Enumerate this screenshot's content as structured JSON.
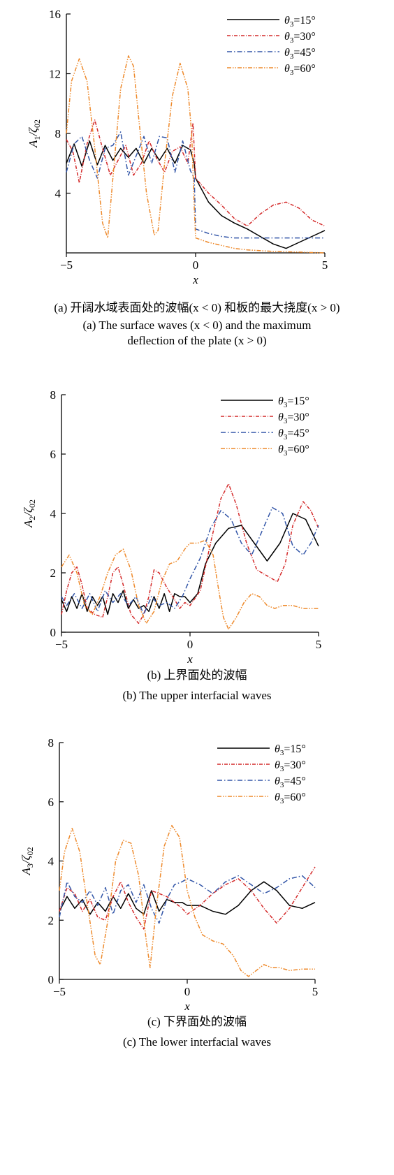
{
  "chart_data": [
    {
      "type": "line",
      "panel": "a",
      "xlabel": "x",
      "ylabel": "A1/ζ02",
      "xlim": [
        -5,
        5
      ],
      "ylim": [
        0,
        16
      ],
      "xticks": [
        "−5",
        "0",
        "5"
      ],
      "yticks": [
        "4",
        "8",
        "12",
        "16"
      ],
      "legend_position": "top-right",
      "caption_cn": "(a) 开阔水域表面处的波幅(x < 0) 和板的最大挠度(x > 0)",
      "caption_en": "(a) The surface waves (x < 0) and the maximum deflection of the plate (x > 0)",
      "series": [
        {
          "name": "θ3=15°",
          "color": "#000000",
          "dash": "",
          "x": [
            -5,
            -4.7,
            -4.4,
            -4.1,
            -3.8,
            -3.5,
            -3.2,
            -2.9,
            -2.6,
            -2.3,
            -2.0,
            -1.7,
            -1.4,
            -1.1,
            -0.8,
            -0.5,
            -0.2,
            -0.05,
            0.0,
            0.5,
            1.0,
            1.5,
            2.0,
            2.5,
            3.0,
            3.5,
            4.0,
            4.5,
            5.0
          ],
          "y": [
            6.0,
            7.3,
            5.8,
            7.5,
            5.9,
            7.2,
            6.2,
            7.0,
            6.4,
            7.0,
            6.0,
            7.0,
            6.2,
            7.0,
            6.0,
            7.2,
            6.9,
            6.0,
            5.0,
            3.4,
            2.5,
            2.0,
            1.6,
            1.1,
            0.6,
            0.3,
            0.7,
            1.1,
            1.5
          ]
        },
        {
          "name": "θ3=30°",
          "color": "#d42a2a",
          "dash": "5,2,1,2",
          "x": [
            -5,
            -4.75,
            -4.5,
            -4.2,
            -3.9,
            -3.6,
            -3.3,
            -3.0,
            -2.7,
            -2.4,
            -2.1,
            -1.8,
            -1.5,
            -1.2,
            -0.9,
            -0.6,
            -0.3,
            -0.1,
            0.0,
            0.5,
            1.0,
            1.5,
            2.0,
            2.5,
            3.0,
            3.5,
            4.0,
            4.5,
            5.0
          ],
          "y": [
            7.6,
            6.8,
            4.7,
            7.3,
            8.9,
            7.0,
            5.2,
            6.2,
            7.2,
            5.2,
            6.0,
            7.5,
            6.3,
            5.4,
            6.8,
            7.1,
            6.0,
            8.7,
            5.0,
            4.0,
            3.2,
            2.3,
            1.8,
            2.6,
            3.2,
            3.4,
            3.0,
            2.2,
            1.8
          ]
        },
        {
          "name": "θ3=45°",
          "color": "#3356a8",
          "dash": "7,3,1.5,3",
          "x": [
            -5,
            -4.7,
            -4.4,
            -4.1,
            -3.8,
            -3.5,
            -3.2,
            -2.9,
            -2.6,
            -2.3,
            -2.0,
            -1.7,
            -1.4,
            -1.1,
            -0.8,
            -0.5,
            -0.2,
            -0.05,
            0.0,
            0.5,
            1.0,
            1.5,
            2.0,
            2.5,
            3.0,
            3.5,
            4.0,
            4.5,
            5.0
          ],
          "y": [
            5.4,
            7.3,
            7.8,
            6.2,
            5.0,
            7.0,
            7.2,
            8.1,
            5.2,
            6.5,
            7.8,
            6.0,
            7.8,
            7.7,
            5.4,
            7.5,
            5.5,
            5.0,
            1.6,
            1.3,
            1.1,
            1.0,
            1.0,
            1.0,
            1.0,
            1.0,
            1.0,
            1.0,
            1.0
          ]
        },
        {
          "name": "θ3=60°",
          "color": "#ee8a2c",
          "dash": "6,2,1.5,2,1.5,2",
          "x": [
            -5,
            -4.8,
            -4.5,
            -4.2,
            -3.9,
            -3.6,
            -3.4,
            -3.2,
            -2.9,
            -2.6,
            -2.4,
            -2.2,
            -1.9,
            -1.6,
            -1.45,
            -1.2,
            -0.9,
            -0.6,
            -0.3,
            -0.15,
            -0.05,
            0.0,
            0.5,
            1.0,
            1.5,
            2.0,
            3.0,
            4.0,
            5.0
          ],
          "y": [
            8.0,
            11.5,
            13.0,
            11.5,
            7.0,
            2.0,
            1.0,
            5.0,
            11.0,
            13.2,
            12.5,
            9.0,
            4.0,
            1.2,
            1.5,
            6.0,
            10.5,
            12.7,
            11.0,
            8.0,
            3.0,
            1.0,
            0.7,
            0.5,
            0.3,
            0.2,
            0.1,
            0.05,
            0.0
          ]
        }
      ]
    },
    {
      "type": "line",
      "panel": "b",
      "xlabel": "x",
      "ylabel": "A2/ζ02",
      "xlim": [
        -5,
        5
      ],
      "ylim": [
        0,
        8
      ],
      "xticks": [
        "−5",
        "0",
        "5"
      ],
      "yticks": [
        "0",
        "2",
        "4",
        "6",
        "8"
      ],
      "legend_position": "top-right",
      "caption_cn": "(b) 上界面处的波幅",
      "caption_en": "(b) The upper interfacial waves",
      "series": [
        {
          "name": "θ3=15°",
          "color": "#000000",
          "dash": "",
          "x": [
            -5,
            -4.8,
            -4.6,
            -4.4,
            -4.2,
            -4.0,
            -3.8,
            -3.6,
            -3.4,
            -3.2,
            -3.0,
            -2.8,
            -2.6,
            -2.4,
            -2.2,
            -2.0,
            -1.8,
            -1.6,
            -1.4,
            -1.2,
            -1.0,
            -0.8,
            -0.6,
            -0.4,
            -0.2,
            0.0,
            0.3,
            0.6,
            1.0,
            1.5,
            2.0,
            2.5,
            3.0,
            3.5,
            4.0,
            4.5,
            5.0
          ],
          "y": [
            1.1,
            0.7,
            1.2,
            0.8,
            1.3,
            0.7,
            1.2,
            0.9,
            1.2,
            0.6,
            1.3,
            1.0,
            1.4,
            0.8,
            1.1,
            0.8,
            0.9,
            0.7,
            1.2,
            0.8,
            1.3,
            0.7,
            1.3,
            1.2,
            1.2,
            1.0,
            1.3,
            2.3,
            3.0,
            3.5,
            3.6,
            3.0,
            2.4,
            3.0,
            4.0,
            3.8,
            2.9
          ]
        },
        {
          "name": "θ3=30°",
          "color": "#d42a2a",
          "dash": "5,2,1,2",
          "x": [
            -5,
            -4.8,
            -4.6,
            -4.4,
            -4.2,
            -4.0,
            -3.7,
            -3.4,
            -3.2,
            -3.0,
            -2.8,
            -2.6,
            -2.3,
            -2.0,
            -1.8,
            -1.6,
            -1.4,
            -1.2,
            -0.9,
            -0.6,
            -0.4,
            -0.2,
            0.0,
            0.4,
            0.8,
            1.2,
            1.5,
            1.8,
            2.2,
            2.6,
            3.0,
            3.4,
            3.7,
            4.0,
            4.4,
            4.7,
            5.0
          ],
          "y": [
            0.6,
            1.4,
            2.0,
            2.2,
            1.6,
            0.8,
            0.6,
            0.5,
            1.2,
            2.0,
            2.2,
            1.6,
            0.6,
            0.3,
            0.6,
            1.2,
            2.1,
            2.0,
            1.5,
            1.1,
            0.8,
            1.0,
            0.9,
            1.4,
            3.0,
            4.5,
            5.0,
            4.3,
            3.0,
            2.1,
            1.9,
            1.7,
            2.3,
            3.6,
            4.4,
            4.1,
            3.5
          ]
        },
        {
          "name": "θ3=45°",
          "color": "#3356a8",
          "dash": "7,3,1.5,3",
          "x": [
            -5,
            -4.8,
            -4.5,
            -4.2,
            -3.9,
            -3.6,
            -3.3,
            -3.0,
            -2.7,
            -2.4,
            -2.1,
            -1.8,
            -1.5,
            -1.2,
            -0.9,
            -0.6,
            -0.3,
            0.0,
            0.4,
            0.8,
            1.2,
            1.6,
            2.0,
            2.4,
            2.8,
            3.2,
            3.6,
            4.0,
            4.4,
            4.7,
            5.0
          ],
          "y": [
            1.2,
            0.9,
            1.3,
            0.8,
            1.3,
            0.7,
            1.4,
            1.0,
            1.3,
            0.9,
            1.2,
            0.6,
            1.2,
            0.9,
            1.0,
            0.8,
            1.2,
            1.8,
            2.5,
            3.5,
            4.1,
            3.8,
            3.0,
            2.6,
            3.4,
            4.2,
            4.0,
            2.9,
            2.6,
            3.0,
            3.6
          ]
        },
        {
          "name": "θ3=60°",
          "color": "#ee8a2c",
          "dash": "6,2,1.5,2,1.5,2",
          "x": [
            -5,
            -4.7,
            -4.4,
            -4.1,
            -3.8,
            -3.5,
            -3.2,
            -2.9,
            -2.6,
            -2.3,
            -2.0,
            -1.7,
            -1.4,
            -1.1,
            -0.8,
            -0.5,
            -0.2,
            0.0,
            0.3,
            0.6,
            0.9,
            1.1,
            1.3,
            1.5,
            1.8,
            2.1,
            2.4,
            2.7,
            3.0,
            3.3,
            3.6,
            4.0,
            4.4,
            4.7,
            5.0
          ],
          "y": [
            2.2,
            2.6,
            2.0,
            0.9,
            0.6,
            1.2,
            2.0,
            2.6,
            2.8,
            2.1,
            0.9,
            0.3,
            0.7,
            1.7,
            2.3,
            2.4,
            2.8,
            3.0,
            3.0,
            3.1,
            2.6,
            1.5,
            0.5,
            0.1,
            0.5,
            1.0,
            1.3,
            1.2,
            0.9,
            0.8,
            0.9,
            0.9,
            0.8,
            0.8,
            0.8
          ]
        }
      ]
    },
    {
      "type": "line",
      "panel": "c",
      "xlabel": "x",
      "ylabel": "A3/ζ02",
      "xlim": [
        -5,
        5
      ],
      "ylim": [
        0,
        8
      ],
      "xticks": [
        "−5",
        "0",
        "5"
      ],
      "yticks": [
        "0",
        "2",
        "4",
        "6",
        "8"
      ],
      "legend_position": "top-right",
      "caption_cn": "(c) 下界面处的波幅",
      "caption_en": "(c) The lower interfacial waves",
      "series": [
        {
          "name": "θ3=15°",
          "color": "#000000",
          "dash": "",
          "x": [
            -5,
            -4.7,
            -4.4,
            -4.1,
            -3.8,
            -3.5,
            -3.2,
            -2.9,
            -2.6,
            -2.3,
            -2.0,
            -1.7,
            -1.4,
            -1.1,
            -0.8,
            -0.5,
            -0.2,
            0.0,
            0.5,
            1.0,
            1.5,
            2.0,
            2.5,
            3.0,
            3.5,
            4.0,
            4.5,
            5.0
          ],
          "y": [
            2.3,
            2.8,
            2.4,
            2.7,
            2.2,
            2.6,
            2.3,
            2.8,
            2.4,
            2.9,
            2.4,
            2.2,
            3.0,
            2.3,
            2.7,
            2.6,
            2.6,
            2.5,
            2.5,
            2.3,
            2.2,
            2.5,
            3.0,
            3.3,
            3.0,
            2.5,
            2.4,
            2.6
          ]
        },
        {
          "name": "θ3=30°",
          "color": "#d42a2a",
          "dash": "5,2,1,2",
          "x": [
            -5,
            -4.7,
            -4.4,
            -4.1,
            -3.8,
            -3.5,
            -3.2,
            -2.9,
            -2.6,
            -2.3,
            -2.0,
            -1.7,
            -1.4,
            -1.1,
            -0.8,
            -0.5,
            -0.2,
            0.0,
            0.5,
            1.0,
            1.5,
            2.0,
            2.5,
            3.0,
            3.5,
            4.0,
            4.5,
            5.0
          ],
          "y": [
            2.3,
            3.1,
            2.9,
            2.3,
            2.7,
            2.1,
            2.0,
            2.8,
            3.3,
            2.6,
            2.1,
            1.7,
            3.0,
            2.9,
            2.8,
            2.6,
            2.4,
            2.2,
            2.5,
            2.9,
            3.2,
            3.4,
            3.0,
            2.4,
            1.9,
            2.4,
            3.1,
            3.8
          ]
        },
        {
          "name": "θ3=45°",
          "color": "#3356a8",
          "dash": "7,3,1.5,3",
          "x": [
            -5,
            -4.7,
            -4.4,
            -4.1,
            -3.8,
            -3.5,
            -3.2,
            -2.9,
            -2.6,
            -2.3,
            -2.0,
            -1.7,
            -1.4,
            -1.1,
            -0.8,
            -0.5,
            -0.2,
            0.0,
            0.5,
            1.0,
            1.5,
            2.0,
            2.5,
            3.0,
            3.5,
            4.0,
            4.5,
            5.0
          ],
          "y": [
            2.1,
            3.3,
            2.8,
            2.6,
            3.0,
            2.5,
            3.1,
            2.2,
            3.0,
            3.2,
            2.6,
            3.2,
            2.4,
            1.9,
            2.7,
            3.2,
            3.3,
            3.4,
            3.2,
            2.9,
            3.3,
            3.5,
            3.2,
            2.9,
            3.1,
            3.4,
            3.5,
            3.1
          ]
        },
        {
          "name": "θ3=60°",
          "color": "#ee8a2c",
          "dash": "6,2,1.5,2,1.5,2",
          "x": [
            -5,
            -4.8,
            -4.5,
            -4.2,
            -3.9,
            -3.6,
            -3.4,
            -3.1,
            -2.8,
            -2.5,
            -2.2,
            -1.9,
            -1.6,
            -1.45,
            -1.2,
            -0.9,
            -0.6,
            -0.3,
            0.0,
            0.3,
            0.6,
            1.0,
            1.4,
            1.8,
            2.1,
            2.4,
            2.7,
            3.0,
            3.3,
            3.6,
            4.0,
            4.5,
            5.0
          ],
          "y": [
            3.0,
            4.3,
            5.1,
            4.3,
            2.5,
            0.8,
            0.5,
            2.0,
            4.0,
            4.7,
            4.6,
            3.5,
            1.3,
            0.4,
            2.5,
            4.5,
            5.2,
            4.8,
            3.0,
            2.1,
            1.5,
            1.3,
            1.2,
            0.8,
            0.3,
            0.1,
            0.3,
            0.5,
            0.4,
            0.4,
            0.3,
            0.35,
            0.35
          ]
        }
      ]
    }
  ]
}
